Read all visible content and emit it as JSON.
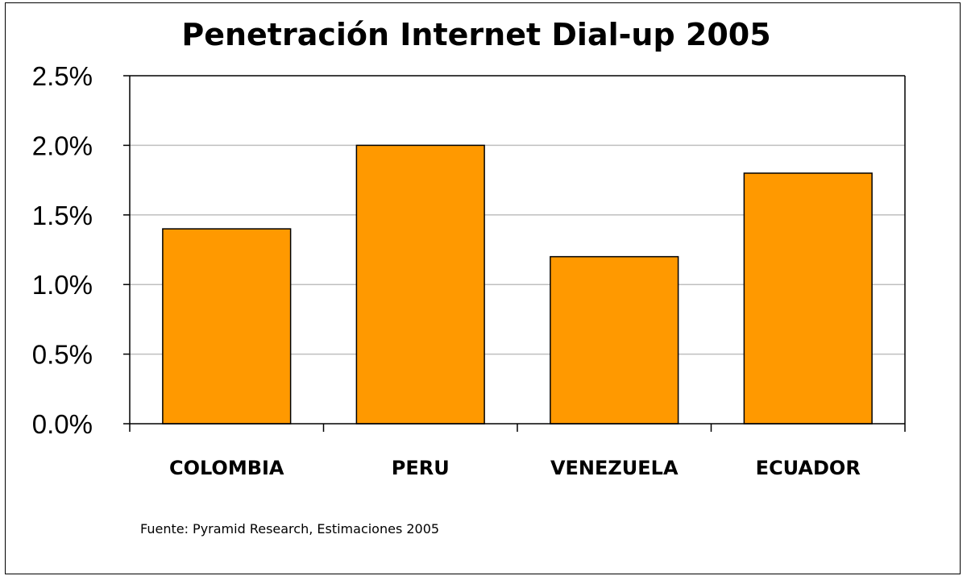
{
  "chart_data": {
    "type": "bar",
    "title": "Penetración Internet Dial-up 2005",
    "categories": [
      "COLOMBIA",
      "PERU",
      "VENEZUELA",
      "ECUADOR"
    ],
    "values": [
      0.014,
      0.02,
      0.012,
      0.018
    ],
    "ylim": [
      0,
      0.025
    ],
    "yticks": [
      0,
      0.005,
      0.01,
      0.015,
      0.02,
      0.025
    ],
    "ytick_labels": [
      "0.0%",
      "0.5%",
      "1.0%",
      "1.5%",
      "2.0%",
      "2.5%"
    ],
    "xlabel": "",
    "ylabel": "",
    "grid": true,
    "legend": false,
    "bar_color": "#FF9900",
    "source": "Fuente:  Pyramid Research, Estimaciones 2005"
  }
}
